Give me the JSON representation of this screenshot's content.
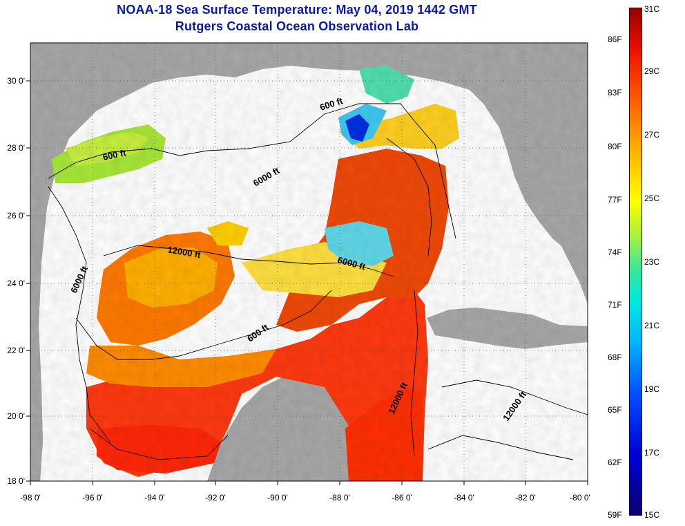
{
  "title": {
    "line1": "NOAA-18 Sea Surface Temperature:  May 04, 2019 1442 GMT",
    "line2": "Rutgers Coastal Ocean Observation Lab"
  },
  "map": {
    "lat_labels": [
      "30 0'",
      "28 0'",
      "26 0'",
      "24 0'",
      "22 0'",
      "20 0'",
      "18 0'"
    ],
    "lon_labels": [
      "-98 0'",
      "-96 0'",
      "-94 0'",
      "-92 0'",
      "-90 0'",
      "-88 0'",
      "-86 0'",
      "-84 0'",
      "-82 0'",
      "-80 0'"
    ],
    "isobaths": {
      "a": "600 ft",
      "b": "600 ft",
      "c": "6000 ft",
      "d": "12000 ft",
      "e": "6000 ft",
      "f": "6000 ft",
      "g": "600 ft",
      "h": "12000 ft",
      "i": "12000 ft"
    },
    "colors": {
      "land": "#a8a8a8",
      "cloud": "#ffffff",
      "title": "#0a1aa8"
    }
  },
  "colorbar": {
    "celsius": [
      "31C",
      "29C",
      "27C",
      "25C",
      "23C",
      "21C",
      "19C",
      "17C",
      "15C"
    ],
    "fahrenheit": [
      "86F",
      "83F",
      "80F",
      "77F",
      "74F",
      "71F",
      "68F",
      "65F",
      "62F",
      "59F"
    ]
  }
}
